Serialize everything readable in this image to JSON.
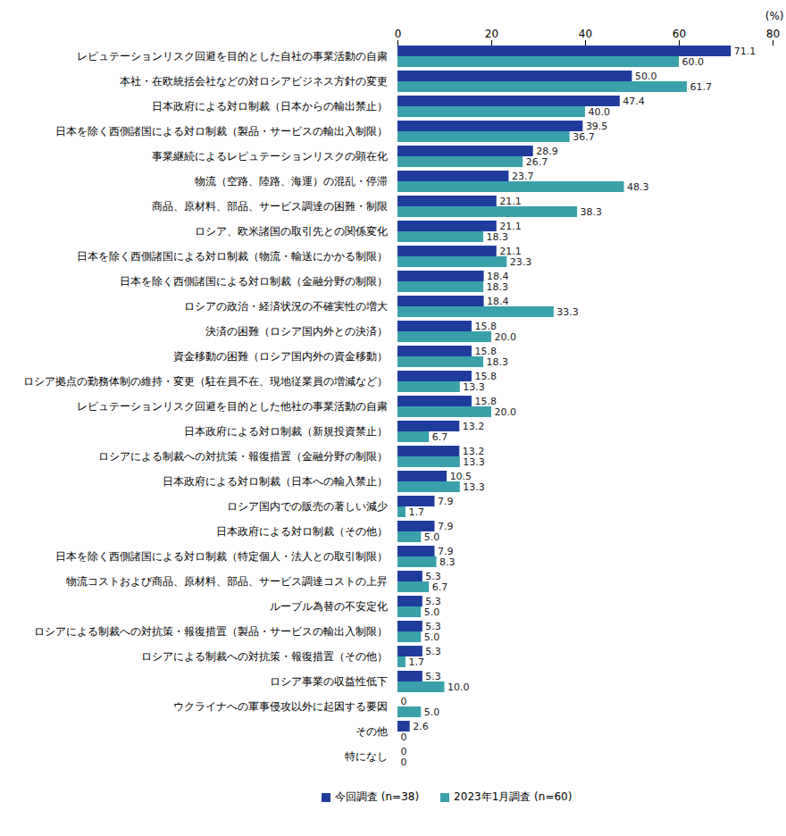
{
  "chart_data": {
    "type": "bar",
    "orientation": "horizontal",
    "data_labels": true,
    "x_label": "(%)",
    "xlim": [
      0,
      80
    ],
    "xticks": [
      0,
      20,
      40,
      60,
      80
    ],
    "legend": "bottom",
    "categories": [
      "レピュテーションリスク回避を目的とした自社の事業活動の自粛",
      "本社・在欧統括会社などの対ロシアビジネス方針の変更",
      "日本政府による対ロ制裁（日本からの輸出禁止）",
      "日本を除く西側諸国による対ロ制裁（製品・サービスの輸出入制限）",
      "事業継続によるレピュテーションリスクの顕在化",
      "物流（空路、陸路、海運）の混乱・停滞",
      "商品、原材料、部品、サービス調達の困難・制限",
      "ロシア、欧米諸国の取引先との関係変化",
      "日本を除く西側諸国による対ロ制裁（物流・輸送にかかる制限）",
      "日本を除く西側諸国による対ロ制裁（金融分野の制限）",
      "ロシアの政治・経済状況の不確実性の増大",
      "決済の困難（ロシア国内外との決済）",
      "資金移動の困難（ロシア国内外の資金移動）",
      "ロシア拠点の勤務体制の維持・変更（駐在員不在、現地従業員の増減など）",
      "レピュテーションリスク回避を目的とした他社の事業活動の自粛",
      "日本政府による対ロ制裁（新規投資禁止）",
      "ロシアによる制裁への対抗策・報復措置（金融分野の制限）",
      "日本政府による対ロ制裁（日本への輸入禁止）",
      "ロシア国内での販売の著しい減少",
      "日本政府による対ロ制裁（その他）",
      "日本を除く西側諸国による対ロ制裁（特定個人・法人との取引制限）",
      "物流コストおよび商品、原材料、部品、サービス調達コストの上昇",
      "ルーブル為替の不安定化",
      "ロシアによる制裁への対抗策・報復措置（製品・サービスの輸出入制限）",
      "ロシアによる制裁への対抗策・報復措置（その他）",
      "ロシア事業の収益性低下",
      "ウクライナへの軍事侵攻以外に起因する要因",
      "その他",
      "特になし"
    ],
    "series": [
      {
        "name": "今回調査 (n=38)",
        "color": "#1f3c9c",
        "values": [
          71.1,
          50.0,
          47.4,
          39.5,
          28.9,
          23.7,
          21.1,
          21.1,
          21.1,
          18.4,
          18.4,
          15.8,
          15.8,
          15.8,
          15.8,
          13.2,
          13.2,
          10.5,
          7.9,
          7.9,
          7.9,
          5.3,
          5.3,
          5.3,
          5.3,
          5.3,
          0,
          2.6,
          0
        ],
        "value_labels": [
          "71.1",
          "50.0",
          "47.4",
          "39.5",
          "28.9",
          "23.7",
          "21.1",
          "21.1",
          "21.1",
          "18.4",
          "18.4",
          "15.8",
          "15.8",
          "15.8",
          "15.8",
          "13.2",
          "13.2",
          "10.5",
          "7.9",
          "7.9",
          "7.9",
          "5.3",
          "5.3",
          "5.3",
          "5.3",
          "5.3",
          "0",
          "2.6",
          "0"
        ]
      },
      {
        "name": "2023年1月調査 (n=60)",
        "color": "#3aa1ab",
        "values": [
          60.0,
          61.7,
          40.0,
          36.7,
          26.7,
          48.3,
          38.3,
          18.3,
          23.3,
          18.3,
          33.3,
          20.0,
          18.3,
          13.3,
          20.0,
          6.7,
          13.3,
          13.3,
          1.7,
          5.0,
          8.3,
          6.7,
          5.0,
          5.0,
          1.7,
          10.0,
          5.0,
          0,
          0
        ],
        "value_labels": [
          "60.0",
          "61.7",
          "40.0",
          "36.7",
          "26.7",
          "48.3",
          "38.3",
          "18.3",
          "23.3",
          "18.3",
          "33.3",
          "20.0",
          "18.3",
          "13.3",
          "20.0",
          "6.7",
          "13.3",
          "13.3",
          "1.7",
          "5.0",
          "8.3",
          "6.7",
          "5.0",
          "5.0",
          "1.7",
          "10.0",
          "5.0",
          "0",
          "0"
        ]
      }
    ]
  }
}
